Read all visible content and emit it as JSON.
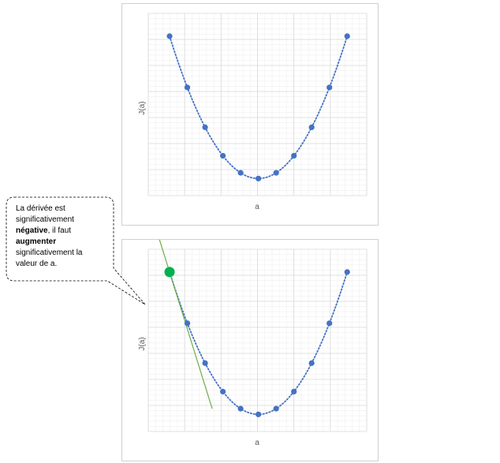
{
  "chart_data": [
    {
      "type": "scatter",
      "title": "",
      "xlabel": "a",
      "ylabel": "J(a)",
      "connector": "dotted-smooth",
      "series": [
        {
          "x": [
            -5,
            -4,
            -3,
            -2,
            -1,
            0,
            1,
            2,
            3,
            4,
            5
          ],
          "y": [
            25,
            16,
            9,
            4,
            1,
            0,
            1,
            4,
            9,
            16,
            25
          ]
        }
      ],
      "grid": true
    },
    {
      "type": "scatter",
      "title": "",
      "xlabel": "a",
      "ylabel": "J(a)",
      "connector": "dotted-smooth",
      "series": [
        {
          "x": [
            -5,
            -4,
            -3,
            -2,
            -1,
            0,
            1,
            2,
            3,
            4,
            5
          ],
          "y": [
            25,
            16,
            9,
            4,
            1,
            0,
            1,
            4,
            9,
            16,
            25
          ]
        }
      ],
      "highlight_point": {
        "x": -5,
        "y": 25
      },
      "tangent_at": -5,
      "grid": true
    }
  ],
  "callout": {
    "line1": "La dérivée est",
    "line2": "significativement",
    "bold1": "négative",
    "line3_rest": ", il faut",
    "bold2": "augmenter",
    "line5": "significativement la",
    "line6": "valeur de a."
  },
  "colors": {
    "point": "#4472C4",
    "highlight": "#00B050",
    "tangent": "#70AD47",
    "grid_major": "#D9D9D9",
    "grid_minor": "#EFEFEF"
  }
}
